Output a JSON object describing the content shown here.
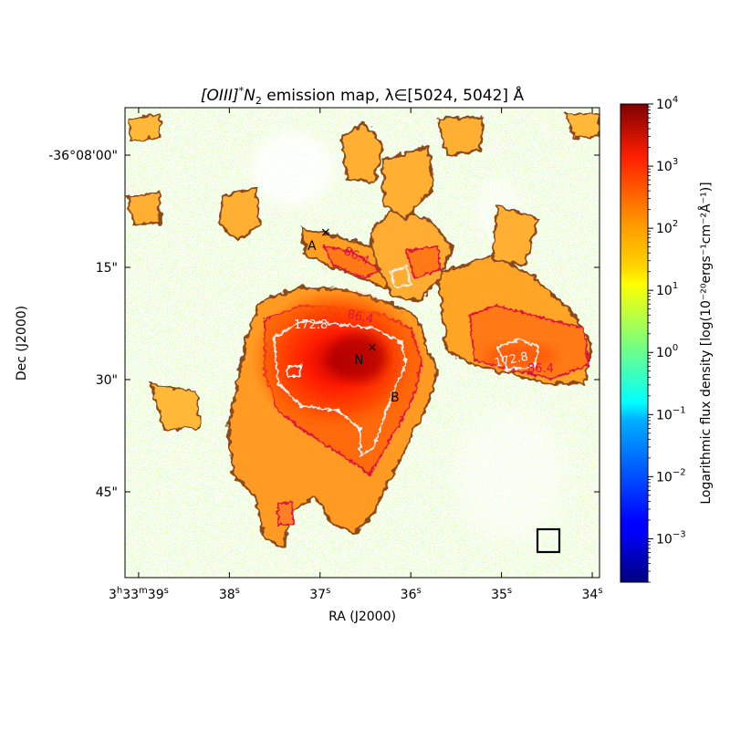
{
  "chart_data": {
    "type": "heatmap",
    "title": "[OIII]*N₂ emission map, λ∈[5024, 5042] Å",
    "title_parts": {
      "species": "[OIII]",
      "star": "*",
      "mult": "N",
      "sub": "2",
      "rest": " emission map, λ∈[5024, 5042] Å"
    },
    "xlabel": "RA (J2000)",
    "ylabel": "Dec (J2000)",
    "x_ticks": [
      {
        "h": "3",
        "hu": "h",
        "m": "33",
        "mu": "m",
        "s": "39",
        "su": "s"
      },
      {
        "s": "38",
        "su": "s"
      },
      {
        "s": "37",
        "su": "s"
      },
      {
        "s": "36",
        "su": "s"
      },
      {
        "s": "35",
        "su": "s"
      },
      {
        "s": "34",
        "su": "s"
      }
    ],
    "x_tick_values_s": [
      39,
      38,
      37,
      36,
      35,
      34
    ],
    "y_ticks": [
      "-36°08'00\"",
      "15\"",
      "30\"",
      "45\""
    ],
    "y_tick_values_arcsec": [
      0,
      15,
      30,
      45
    ],
    "colorbar": {
      "label": "Logarithmic flux density [log(10⁻²⁰ergs⁻¹cm⁻²Å⁻¹)]",
      "scale": "log",
      "colormap": "jet",
      "range": [
        0.0002,
        10000
      ],
      "ticks": [
        {
          "base": "10",
          "exp": "4",
          "value": 10000
        },
        {
          "base": "10",
          "exp": "3",
          "value": 1000
        },
        {
          "base": "10",
          "exp": "2",
          "value": 100
        },
        {
          "base": "10",
          "exp": "1",
          "value": 10
        },
        {
          "base": "10",
          "exp": "0",
          "value": 1
        },
        {
          "base": "10",
          "exp": "−1",
          "value": 0.1
        },
        {
          "base": "10",
          "exp": "−2",
          "value": 0.01
        },
        {
          "base": "10",
          "exp": "−3",
          "value": 0.001
        }
      ]
    },
    "contours": [
      {
        "level": "86.4",
        "color": "#dc143c"
      },
      {
        "level": "172.8",
        "color": "#f0f0f0"
      }
    ],
    "markers": [
      {
        "label": "A",
        "symbol": "×"
      },
      {
        "label": "N",
        "symbol": "×"
      },
      {
        "label": "B",
        "symbol": ""
      }
    ]
  }
}
